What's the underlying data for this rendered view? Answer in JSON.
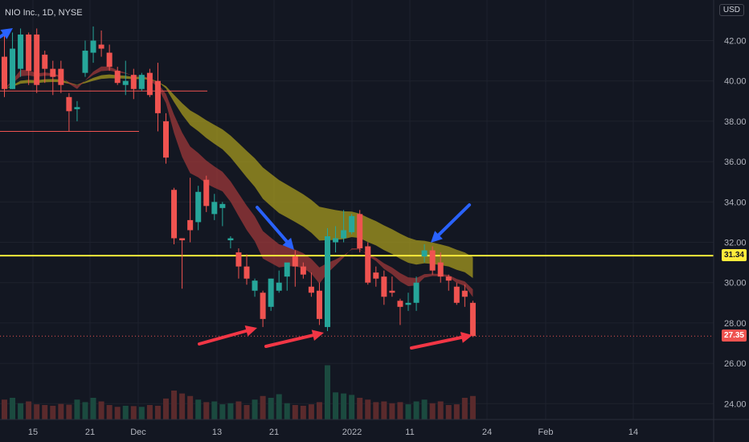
{
  "header": {
    "symbol_text": "NIO Inc., 1D, NYSE",
    "currency": "USD"
  },
  "price_tags": {
    "current": "31.34",
    "last": "27.35"
  },
  "colors": {
    "up": "#26a69a",
    "down": "#ef5350",
    "horizontal_line": "#ffeb3b",
    "band_slow": "#a69a1f",
    "band_fast": "#a63a3a",
    "arrow_red": "#f23645",
    "arrow_blue": "#2962ff"
  },
  "chart_data": {
    "type": "candlestick",
    "y_axis": {
      "ticks": [
        "42.00",
        "40.00",
        "38.00",
        "36.00",
        "34.00",
        "32.00",
        "30.00",
        "28.00",
        "26.00",
        "24.00"
      ],
      "ylim": [
        23,
        43.6
      ]
    },
    "x_axis": {
      "ticks": [
        "15",
        "21",
        "Dec",
        "13",
        "21",
        "2022",
        "11",
        "24",
        "Feb",
        "14"
      ]
    },
    "horizontal_level": 31.34,
    "last_price": 27.35,
    "candles": [
      {
        "o": 41.2,
        "h": 42.5,
        "l": 39.2,
        "c": 39.6
      },
      {
        "o": 39.6,
        "h": 42.4,
        "l": 39.6,
        "c": 41.6
      },
      {
        "o": 40.6,
        "h": 42.6,
        "l": 40.2,
        "c": 42.3
      },
      {
        "o": 42.3,
        "h": 42.4,
        "l": 39.8,
        "c": 40.5
      },
      {
        "o": 42.3,
        "h": 42.6,
        "l": 39.4,
        "c": 39.8
      },
      {
        "o": 41.3,
        "h": 41.5,
        "l": 39.9,
        "c": 40.6
      },
      {
        "o": 40.6,
        "h": 41.0,
        "l": 39.3,
        "c": 40.2
      },
      {
        "o": 40.6,
        "h": 41.0,
        "l": 39.4,
        "c": 39.8
      },
      {
        "o": 39.2,
        "h": 39.4,
        "l": 37.5,
        "c": 38.5
      },
      {
        "o": 38.6,
        "h": 39.0,
        "l": 38.0,
        "c": 38.7
      },
      {
        "o": 40.4,
        "h": 42.0,
        "l": 40.2,
        "c": 41.5
      },
      {
        "o": 41.4,
        "h": 42.7,
        "l": 40.9,
        "c": 42.0
      },
      {
        "o": 41.8,
        "h": 42.5,
        "l": 41.2,
        "c": 41.6
      },
      {
        "o": 41.4,
        "h": 41.8,
        "l": 40.5,
        "c": 40.7
      },
      {
        "o": 40.5,
        "h": 40.7,
        "l": 39.8,
        "c": 39.9
      },
      {
        "o": 39.8,
        "h": 41.0,
        "l": 39.3,
        "c": 40.0
      },
      {
        "o": 40.3,
        "h": 40.6,
        "l": 39.1,
        "c": 39.6
      },
      {
        "o": 39.6,
        "h": 40.4,
        "l": 39.5,
        "c": 40.3
      },
      {
        "o": 40.4,
        "h": 40.6,
        "l": 39.2,
        "c": 39.3
      },
      {
        "o": 40.0,
        "h": 40.9,
        "l": 37.5,
        "c": 38.4
      },
      {
        "o": 38.0,
        "h": 38.4,
        "l": 35.9,
        "c": 36.2
      },
      {
        "o": 34.6,
        "h": 34.7,
        "l": 31.9,
        "c": 32.2
      },
      {
        "o": 32.2,
        "h": 32.2,
        "l": 29.7,
        "c": 32.1
      },
      {
        "o": 33.1,
        "h": 35.2,
        "l": 32.0,
        "c": 32.6
      },
      {
        "o": 33.0,
        "h": 34.8,
        "l": 32.6,
        "c": 34.5
      },
      {
        "o": 35.1,
        "h": 35.3,
        "l": 33.5,
        "c": 33.8
      },
      {
        "o": 33.4,
        "h": 34.4,
        "l": 33.1,
        "c": 34.0
      },
      {
        "o": 33.7,
        "h": 34.0,
        "l": 32.8,
        "c": 33.9
      },
      {
        "o": 32.1,
        "h": 32.3,
        "l": 31.7,
        "c": 32.2
      },
      {
        "o": 31.5,
        "h": 31.7,
        "l": 30.2,
        "c": 30.8
      },
      {
        "o": 30.8,
        "h": 31.4,
        "l": 29.9,
        "c": 30.2
      },
      {
        "o": 29.6,
        "h": 30.2,
        "l": 29.3,
        "c": 30.1
      },
      {
        "o": 29.5,
        "h": 29.6,
        "l": 27.8,
        "c": 28.2
      },
      {
        "o": 28.8,
        "h": 30.2,
        "l": 28.6,
        "c": 30.2
      },
      {
        "o": 29.6,
        "h": 30.6,
        "l": 29.5,
        "c": 30.0
      },
      {
        "o": 30.3,
        "h": 30.9,
        "l": 29.6,
        "c": 31.0
      },
      {
        "o": 31.3,
        "h": 31.6,
        "l": 29.8,
        "c": 30.8
      },
      {
        "o": 30.8,
        "h": 31.0,
        "l": 30.2,
        "c": 30.4
      },
      {
        "o": 29.8,
        "h": 30.5,
        "l": 29.3,
        "c": 29.5
      },
      {
        "o": 29.6,
        "h": 30.0,
        "l": 27.9,
        "c": 28.2
      },
      {
        "o": 27.8,
        "h": 32.7,
        "l": 27.6,
        "c": 32.3
      },
      {
        "o": 32.0,
        "h": 32.8,
        "l": 31.5,
        "c": 32.2
      },
      {
        "o": 32.2,
        "h": 33.6,
        "l": 32.0,
        "c": 32.6
      },
      {
        "o": 32.5,
        "h": 33.4,
        "l": 32.4,
        "c": 33.3
      },
      {
        "o": 33.4,
        "h": 33.6,
        "l": 31.5,
        "c": 31.7
      },
      {
        "o": 31.8,
        "h": 32.0,
        "l": 29.9,
        "c": 30.0
      },
      {
        "o": 30.5,
        "h": 30.8,
        "l": 29.8,
        "c": 30.2
      },
      {
        "o": 30.3,
        "h": 30.6,
        "l": 28.9,
        "c": 29.3
      },
      {
        "o": 29.6,
        "h": 30.3,
        "l": 29.3,
        "c": 29.5
      },
      {
        "o": 29.1,
        "h": 29.2,
        "l": 27.9,
        "c": 28.8
      },
      {
        "o": 28.9,
        "h": 29.5,
        "l": 28.6,
        "c": 29.0
      },
      {
        "o": 29.0,
        "h": 30.3,
        "l": 28.6,
        "c": 30.0
      },
      {
        "o": 31.3,
        "h": 31.9,
        "l": 31.0,
        "c": 31.6
      },
      {
        "o": 31.6,
        "h": 31.8,
        "l": 30.4,
        "c": 30.6
      },
      {
        "o": 31.0,
        "h": 31.5,
        "l": 30.0,
        "c": 30.3
      },
      {
        "o": 30.3,
        "h": 30.4,
        "l": 29.6,
        "c": 30.1
      },
      {
        "o": 29.8,
        "h": 30.0,
        "l": 28.9,
        "c": 29.0
      },
      {
        "o": 29.6,
        "h": 29.9,
        "l": 28.8,
        "c": 29.3
      },
      {
        "o": 29.0,
        "h": 29.1,
        "l": 27.3,
        "c": 27.35
      }
    ],
    "volume_relative": [
      0.55,
      0.6,
      0.45,
      0.5,
      0.42,
      0.4,
      0.38,
      0.43,
      0.41,
      0.55,
      0.48,
      0.6,
      0.5,
      0.4,
      0.35,
      0.38,
      0.37,
      0.35,
      0.4,
      0.38,
      0.58,
      0.8,
      0.72,
      0.65,
      0.55,
      0.48,
      0.5,
      0.42,
      0.45,
      0.5,
      0.4,
      0.55,
      0.65,
      0.6,
      0.7,
      0.45,
      0.4,
      0.38,
      0.42,
      0.48,
      1.5,
      0.75,
      0.72,
      0.68,
      0.6,
      0.55,
      0.48,
      0.5,
      0.45,
      0.48,
      0.42,
      0.5,
      0.55,
      0.45,
      0.5,
      0.4,
      0.42,
      0.6,
      0.65
    ]
  }
}
